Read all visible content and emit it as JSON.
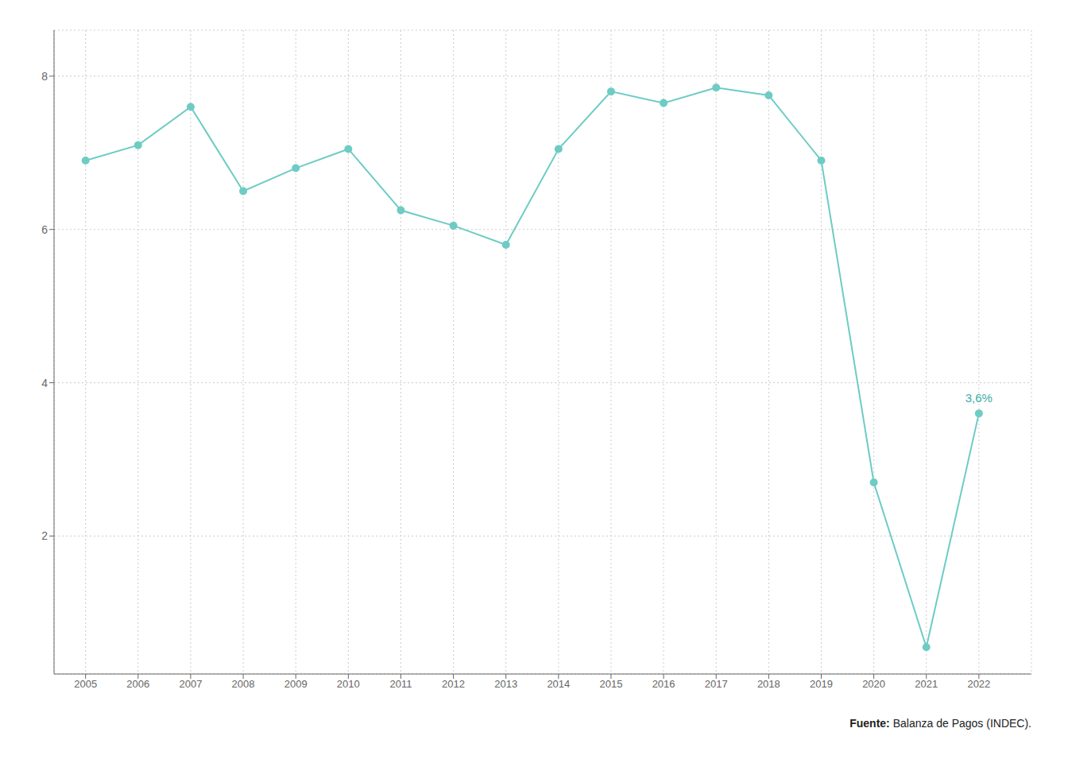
{
  "chart_data": {
    "type": "line",
    "x": [
      2005,
      2006,
      2007,
      2008,
      2009,
      2010,
      2011,
      2012,
      2013,
      2014,
      2015,
      2016,
      2017,
      2018,
      2019,
      2020,
      2021,
      2022
    ],
    "series": [
      {
        "values": [
          6.9,
          7.1,
          7.6,
          6.5,
          6.8,
          7.05,
          6.25,
          6.05,
          5.8,
          7.05,
          7.8,
          7.65,
          7.85,
          7.75,
          6.9,
          2.7,
          0.55,
          3.6
        ],
        "color": "#6dccc4",
        "marker": "circle"
      }
    ],
    "xlim": [
      2004.4,
      2023.0
    ],
    "xticks": [
      2005,
      2006,
      2007,
      2008,
      2009,
      2010,
      2011,
      2012,
      2013,
      2014,
      2015,
      2016,
      2017,
      2018,
      2019,
      2020,
      2021,
      2022
    ],
    "ylim": [
      0.2,
      8.6
    ],
    "yticks": [
      2,
      4,
      6,
      8
    ],
    "grid": true,
    "annotations": [
      {
        "text": "3,6%",
        "x": 2022,
        "y": 3.6,
        "color": "#3aada5"
      }
    ],
    "source": "Fuente: Balanza de Pagos (INDEC)."
  }
}
